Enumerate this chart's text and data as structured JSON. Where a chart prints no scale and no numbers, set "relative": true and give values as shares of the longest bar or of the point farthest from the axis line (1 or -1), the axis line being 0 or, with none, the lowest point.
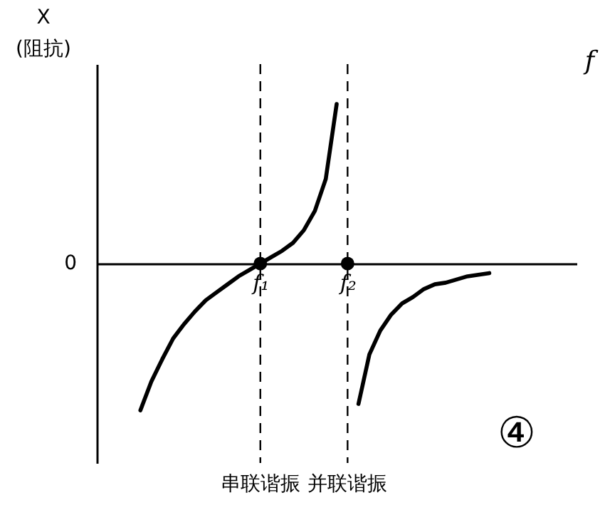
{
  "chart_data": {
    "type": "line",
    "relative": true,
    "xlabel": "f",
    "ylabel": "X\n(阻抗)",
    "categories": [
      null,
      null,
      null,
      null,
      null,
      null,
      null,
      null,
      null,
      null,
      null,
      null,
      null,
      null,
      null,
      "f₁",
      null,
      null,
      null,
      null,
      null,
      null,
      null,
      "f₂",
      null,
      null,
      null,
      null,
      null,
      null,
      null,
      null,
      null,
      null,
      null,
      null,
      null,
      null,
      null,
      null,
      null,
      null,
      null,
      null,
      null
    ],
    "series": [
      {
        "color": "#000000",
        "line_style": "solid",
        "values": [
          null,
          null,
          null,
          null,
          -0.92,
          -0.74,
          -0.6,
          -0.47,
          -0.38,
          -0.3,
          -0.23,
          -0.18,
          -0.13,
          -0.08,
          -0.04,
          0,
          0.04,
          0.08,
          0.13,
          0.21,
          0.33,
          0.53,
          1,
          null,
          null,
          null,
          null,
          null,
          null,
          null,
          null,
          null,
          null,
          null,
          null,
          null,
          null,
          null,
          null,
          null,
          null,
          null,
          null,
          null,
          null
        ]
      },
      {
        "color": "#000000",
        "line_style": "solid",
        "values": [
          null,
          null,
          null,
          null,
          null,
          null,
          null,
          null,
          null,
          null,
          null,
          null,
          null,
          null,
          null,
          null,
          null,
          null,
          null,
          null,
          null,
          null,
          null,
          null,
          -0.88,
          -0.57,
          -0.42,
          -0.32,
          -0.25,
          -0.21,
          -0.16,
          -0.13,
          -0.12,
          -0.1,
          -0.08,
          -0.07,
          -0.06,
          null,
          null,
          null,
          null,
          null,
          null,
          null,
          null
        ]
      },
      {
        "type": "scatter",
        "color": "#000000",
        "marker": "circle",
        "x": [
          "f₁",
          "f₂"
        ],
        "values": [
          0,
          0
        ]
      }
    ],
    "ref_lines": [
      {
        "axis": "x",
        "value": "f₁",
        "label": "串联谐振",
        "color": "#000000",
        "line_style": "dashed"
      },
      {
        "axis": "x",
        "value": "f₂",
        "label": "并联谐振",
        "color": "#000000",
        "line_style": "dashed"
      }
    ],
    "annotations": [
      "0",
      "④"
    ]
  }
}
